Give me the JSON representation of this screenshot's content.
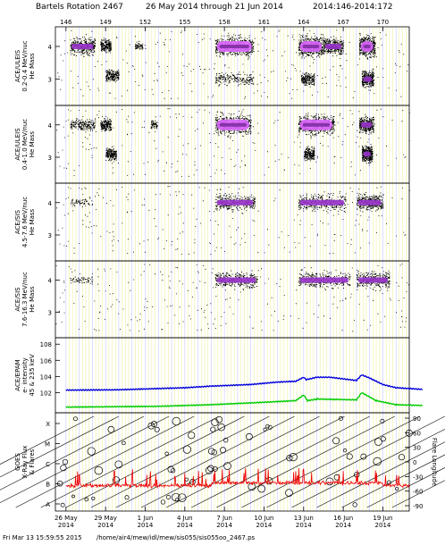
{
  "header": {
    "title_rotation": "Bartels Rotation 2467",
    "title_dates": "26 May 2014 through 21 Jun 2014",
    "title_doy": "2014:146-2014:172"
  },
  "footer": {
    "timestamp": "Fri Mar 13 15:59:55 2015",
    "path": "/home/air4/mew/idl/mew/sis055/sis055oo_2467.ps"
  },
  "chart_data": {
    "type": "multi-panel",
    "doy_ticks": [
      "146",
      "149",
      "152",
      "155",
      "158",
      "161",
      "164",
      "167",
      "170"
    ],
    "date_ticks": [
      {
        "day": "26 May",
        "year": "2014"
      },
      {
        "day": "29 May",
        "year": "2014"
      },
      {
        "day": "1 Jun",
        "year": "2014"
      },
      {
        "day": "4 Jun",
        "year": "2014"
      },
      {
        "day": "7 Jun",
        "year": "2014"
      },
      {
        "day": "10 Jun",
        "year": "2014"
      },
      {
        "day": "13 Jun",
        "year": "2014"
      },
      {
        "day": "16 Jun",
        "year": "2014"
      },
      {
        "day": "19 Jun",
        "year": "2014"
      }
    ],
    "panels": [
      {
        "type": "scatter-density",
        "ylabel_lines": [
          "ACE/ULEIS",
          "0.2-0.4 MeV/nuc",
          "He Mass"
        ],
        "yticks": [
          "4",
          "3"
        ],
        "bands": [
          {
            "start": 146.3,
            "end": 148.2,
            "mass": 4.0,
            "level": 2
          },
          {
            "start": 148.6,
            "end": 149.4,
            "mass": 4.0,
            "level": 1
          },
          {
            "start": 149.0,
            "end": 150.0,
            "mass": 3.1,
            "level": 1
          },
          {
            "start": 151.2,
            "end": 151.8,
            "mass": 4.0,
            "level": 0
          },
          {
            "start": 157.3,
            "end": 160.2,
            "mass": 4.0,
            "level": 3
          },
          {
            "start": 157.3,
            "end": 160.2,
            "mass": 3.0,
            "level": 1
          },
          {
            "start": 163.6,
            "end": 165.5,
            "mass": 4.0,
            "level": 3
          },
          {
            "start": 163.8,
            "end": 164.8,
            "mass": 3.0,
            "level": 1
          },
          {
            "start": 165.5,
            "end": 167.0,
            "mass": 4.0,
            "level": 2
          },
          {
            "start": 168.2,
            "end": 169.4,
            "mass": 4.0,
            "level": 3
          },
          {
            "start": 168.4,
            "end": 169.3,
            "mass": 3.0,
            "level": 2
          }
        ]
      },
      {
        "type": "scatter-density",
        "ylabel_lines": [
          "ACE/ULEIS",
          "0.4-1.0 MeV/nuc",
          "He Mass"
        ],
        "yticks": [
          "4",
          "3"
        ],
        "bands": [
          {
            "start": 146.3,
            "end": 148.2,
            "mass": 4.0,
            "level": 1
          },
          {
            "start": 148.6,
            "end": 149.4,
            "mass": 4.0,
            "level": 1
          },
          {
            "start": 149.0,
            "end": 149.8,
            "mass": 3.1,
            "level": 1
          },
          {
            "start": 152.4,
            "end": 152.9,
            "mass": 4.0,
            "level": 0
          },
          {
            "start": 157.3,
            "end": 160.0,
            "mass": 4.0,
            "level": 3
          },
          {
            "start": 163.6,
            "end": 166.3,
            "mass": 4.0,
            "level": 3
          },
          {
            "start": 164.0,
            "end": 164.8,
            "mass": 3.1,
            "level": 1
          },
          {
            "start": 168.2,
            "end": 169.3,
            "mass": 4.0,
            "level": 2
          },
          {
            "start": 168.4,
            "end": 169.2,
            "mass": 3.1,
            "level": 2
          }
        ]
      },
      {
        "type": "scatter-density",
        "ylabel_lines": [
          "ACE/SIS",
          "4.5-7.6 MeV/nuc",
          "He Mass"
        ],
        "yticks": [
          "4",
          "3"
        ],
        "bands": [
          {
            "start": 146.3,
            "end": 148.0,
            "mass": 4.0,
            "level": 0
          },
          {
            "start": 157.3,
            "end": 160.3,
            "mass": 4.0,
            "level": 2
          },
          {
            "start": 163.6,
            "end": 167.2,
            "mass": 4.0,
            "level": 2
          },
          {
            "start": 168.0,
            "end": 170.0,
            "mass": 4.0,
            "level": 2
          }
        ]
      },
      {
        "type": "scatter-density",
        "ylabel_lines": [
          "ACE/SIS",
          "7.6-16.3 MeV/nuc",
          "He Mass"
        ],
        "yticks": [
          "4",
          "3"
        ],
        "bands": [
          {
            "start": 146.3,
            "end": 148.0,
            "mass": 4.0,
            "level": 0
          },
          {
            "start": 157.3,
            "end": 160.5,
            "mass": 4.0,
            "level": 2
          },
          {
            "start": 163.6,
            "end": 167.5,
            "mass": 4.0,
            "level": 2
          },
          {
            "start": 168.0,
            "end": 170.5,
            "mass": 4.0,
            "level": 2
          }
        ]
      },
      {
        "type": "line",
        "yscale": "log",
        "ylabel_lines": [
          "ACE/EPAM",
          "e- intensity",
          "45 & 235 keV"
        ],
        "yticks": [
          "10^8",
          "10^6",
          "10^4",
          "10^2"
        ],
        "series": [
          {
            "color": "#0000dd",
            "points": [
              [
                146,
                2.3
              ],
              [
                150,
                2.35
              ],
              [
                153,
                2.5
              ],
              [
                155,
                2.6
              ],
              [
                157,
                2.8
              ],
              [
                160,
                3.0
              ],
              [
                162,
                3.3
              ],
              [
                163.4,
                3.4
              ],
              [
                164,
                3.9
              ],
              [
                164.2,
                3.6
              ],
              [
                165,
                3.9
              ],
              [
                166,
                3.9
              ],
              [
                167,
                3.7
              ],
              [
                168,
                3.5
              ],
              [
                168.4,
                4.2
              ],
              [
                169,
                3.8
              ],
              [
                170,
                3.0
              ],
              [
                171,
                2.6
              ],
              [
                173,
                2.4
              ]
            ]
          },
          {
            "color": "#00cc00",
            "points": [
              [
                146,
                0.2
              ],
              [
                153,
                0.3
              ],
              [
                157,
                0.5
              ],
              [
                161,
                0.8
              ],
              [
                163.4,
                1.0
              ],
              [
                164,
                1.7
              ],
              [
                164.3,
                1.0
              ],
              [
                165,
                1.2
              ],
              [
                168,
                1.1
              ],
              [
                168.4,
                2.0
              ],
              [
                169.5,
                1.0
              ],
              [
                171,
                0.5
              ],
              [
                173,
                0.4
              ]
            ]
          }
        ]
      },
      {
        "type": "line",
        "ylabel_lines": [
          "GOES",
          "X-Ray Flux",
          "& Flares"
        ],
        "yticks_left": [
          "X",
          "M",
          "C",
          "B",
          "A"
        ],
        "yticks_right": [
          "90",
          "60",
          "30",
          "0",
          "-30",
          "-60",
          "-90"
        ],
        "ylabel_right": "Flare Longitude",
        "series": [
          {
            "color": "#ee0000",
            "base_level": "B"
          }
        ]
      }
    ]
  }
}
